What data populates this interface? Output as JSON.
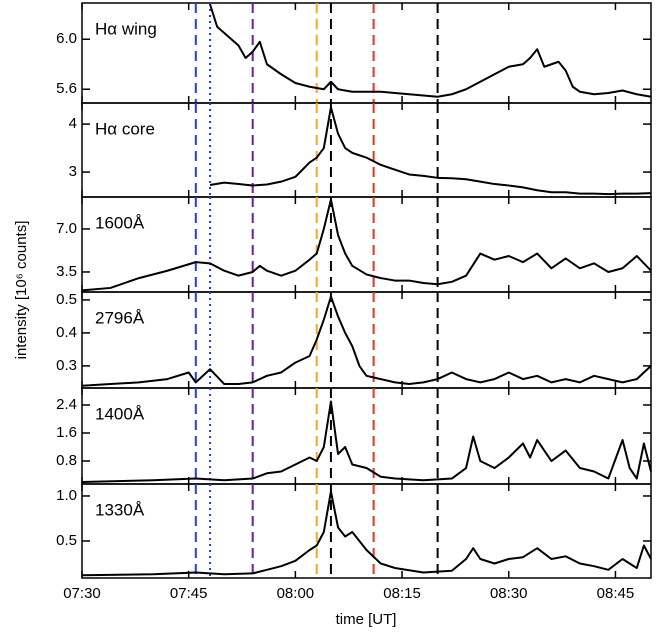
{
  "x_axis": {
    "label": "time [UT]",
    "lim": [
      "07:30",
      "08:50"
    ],
    "ticks": [
      "07:30",
      "07:45",
      "08:00",
      "08:15",
      "08:30",
      "08:45"
    ]
  },
  "ylabel": "intensity [10⁶ counts]",
  "vlines": [
    {
      "x": "07:46",
      "color": "#1f3fe0",
      "style": "dashed"
    },
    {
      "x": "07:48",
      "color": "#1f3fe0",
      "style": "dotted"
    },
    {
      "x": "07:54",
      "color": "#6a1fa0",
      "style": "dashed"
    },
    {
      "x": "08:03",
      "color": "#f5a623",
      "style": "dashed"
    },
    {
      "x": "08:05",
      "color": "#000000",
      "style": "dashed"
    },
    {
      "x": "08:11",
      "color": "#e8321e",
      "style": "dashed"
    },
    {
      "x": "08:20",
      "color": "#000000",
      "style": "dashed"
    }
  ],
  "chart_data": [
    {
      "type": "line",
      "title": "Hα wing",
      "color": "#000000",
      "ylim": [
        5.49,
        6.29
      ],
      "yticks": [
        5.6,
        {
          "value": 6,
          "label": "6.0"
        }
      ],
      "x": [
        "07:48",
        "07:49",
        "07:50",
        "07:52",
        "07:53",
        "07:54",
        "07:55",
        "07:56",
        "07:58",
        "08:00",
        "08:02",
        "08:04",
        "08:05",
        "08:06",
        "08:08",
        "08:10",
        "08:12",
        "08:14",
        "08:16",
        "08:18",
        "08:20",
        "08:22",
        "08:24",
        "08:26",
        "08:28",
        "08:30",
        "08:32",
        "08:33",
        "08:34",
        "08:35",
        "08:36",
        "08:37",
        "08:38",
        "08:39",
        "08:40",
        "08:42",
        "08:44",
        "08:46",
        "08:48",
        "08:50"
      ],
      "values": [
        6.28,
        6.1,
        6.05,
        5.95,
        5.85,
        5.9,
        5.98,
        5.8,
        5.72,
        5.65,
        5.62,
        5.6,
        5.66,
        5.6,
        5.58,
        5.58,
        5.58,
        5.57,
        5.56,
        5.55,
        5.54,
        5.56,
        5.6,
        5.66,
        5.72,
        5.78,
        5.8,
        5.85,
        5.92,
        5.78,
        5.8,
        5.82,
        5.75,
        5.62,
        5.58,
        5.56,
        5.57,
        5.59,
        5.56,
        5.54
      ]
    },
    {
      "type": "line",
      "title": "Hα core",
      "color": "#000000",
      "ylim": [
        2.48,
        4.44
      ],
      "yticks": [
        3,
        4
      ],
      "x": [
        "07:48",
        "07:50",
        "07:52",
        "07:54",
        "07:56",
        "07:58",
        "08:00",
        "08:02",
        "08:03",
        "08:04",
        "08:05",
        "08:06",
        "08:07",
        "08:08",
        "08:10",
        "08:12",
        "08:14",
        "08:16",
        "08:18",
        "08:20",
        "08:22",
        "08:24",
        "08:26",
        "08:28",
        "08:30",
        "08:32",
        "08:34",
        "08:36",
        "08:38",
        "08:40",
        "08:42",
        "08:44",
        "08:46",
        "08:48",
        "08:50"
      ],
      "values": [
        2.73,
        2.78,
        2.75,
        2.72,
        2.74,
        2.8,
        2.9,
        3.2,
        3.3,
        3.5,
        4.35,
        3.8,
        3.5,
        3.4,
        3.3,
        3.15,
        3.05,
        2.95,
        2.92,
        2.88,
        2.87,
        2.85,
        2.8,
        2.75,
        2.72,
        2.68,
        2.62,
        2.58,
        2.58,
        2.55,
        2.55,
        2.54,
        2.55,
        2.55,
        2.56
      ]
    },
    {
      "type": "line",
      "title": "1600Å",
      "color": "#000000",
      "ylim": [
        1.87,
        9.6
      ],
      "yticks": [
        3.5,
        {
          "value": 7,
          "label": "7.0"
        }
      ],
      "x": [
        "07:30",
        "07:34",
        "07:38",
        "07:42",
        "07:46",
        "07:48",
        "07:50",
        "07:52",
        "07:54",
        "07:55",
        "07:56",
        "07:58",
        "08:00",
        "08:02",
        "08:03",
        "08:04",
        "08:05",
        "08:06",
        "08:07",
        "08:08",
        "08:10",
        "08:12",
        "08:14",
        "08:16",
        "08:18",
        "08:20",
        "08:22",
        "08:24",
        "08:26",
        "08:28",
        "08:30",
        "08:32",
        "08:34",
        "08:36",
        "08:38",
        "08:40",
        "08:42",
        "08:44",
        "08:46",
        "08:48",
        "08:50"
      ],
      "values": [
        2.0,
        2.2,
        3.0,
        3.6,
        4.3,
        4.2,
        3.6,
        3.2,
        3.5,
        4.0,
        3.6,
        3.2,
        3.6,
        4.5,
        5.0,
        7.0,
        9.4,
        6.5,
        5.0,
        4.0,
        3.3,
        3.0,
        2.8,
        2.8,
        2.6,
        2.5,
        2.7,
        3.2,
        5.0,
        4.5,
        4.8,
        4.3,
        5.0,
        3.8,
        4.6,
        3.8,
        4.2,
        3.5,
        3.8,
        4.8,
        3.6
      ]
    },
    {
      "type": "line",
      "title": "2796Å",
      "color": "#000000",
      "ylim": [
        0.233,
        0.524
      ],
      "yticks": [
        0.3,
        0.4,
        0.5
      ],
      "x": [
        "07:30",
        "07:34",
        "07:38",
        "07:42",
        "07:45",
        "07:46",
        "07:48",
        "07:50",
        "07:52",
        "07:54",
        "07:56",
        "07:58",
        "08:00",
        "08:02",
        "08:03",
        "08:04",
        "08:05",
        "08:06",
        "08:07",
        "08:08",
        "08:09",
        "08:10",
        "08:12",
        "08:14",
        "08:16",
        "08:18",
        "08:20",
        "08:22",
        "08:24",
        "08:26",
        "08:28",
        "08:30",
        "08:32",
        "08:34",
        "08:36",
        "08:38",
        "08:40",
        "08:42",
        "08:44",
        "08:46",
        "08:48",
        "08:50"
      ],
      "values": [
        0.24,
        0.245,
        0.25,
        0.26,
        0.28,
        0.25,
        0.29,
        0.245,
        0.245,
        0.25,
        0.27,
        0.28,
        0.31,
        0.33,
        0.38,
        0.44,
        0.51,
        0.45,
        0.4,
        0.36,
        0.3,
        0.27,
        0.26,
        0.25,
        0.245,
        0.25,
        0.26,
        0.28,
        0.26,
        0.25,
        0.26,
        0.28,
        0.26,
        0.27,
        0.25,
        0.26,
        0.25,
        0.27,
        0.26,
        0.25,
        0.26,
        0.3
      ]
    },
    {
      "type": "line",
      "title": "1400Å",
      "color": "#000000",
      "ylim": [
        0.143,
        2.886
      ],
      "yticks": [
        0.8,
        1.6,
        2.4
      ],
      "x": [
        "07:30",
        "07:40",
        "07:46",
        "07:50",
        "07:54",
        "07:56",
        "07:58",
        "08:00",
        "08:02",
        "08:03",
        "08:04",
        "08:05",
        "08:06",
        "08:07",
        "08:08",
        "08:10",
        "08:12",
        "08:14",
        "08:18",
        "08:22",
        "08:24",
        "08:25",
        "08:26",
        "08:28",
        "08:30",
        "08:32",
        "08:33",
        "08:34",
        "08:36",
        "08:38",
        "08:40",
        "08:42",
        "08:44",
        "08:46",
        "08:47",
        "08:48",
        "08:49",
        "08:50"
      ],
      "values": [
        0.2,
        0.25,
        0.3,
        0.25,
        0.3,
        0.45,
        0.5,
        0.7,
        0.9,
        0.8,
        1.2,
        2.5,
        1.0,
        1.2,
        0.7,
        0.6,
        0.35,
        0.3,
        0.25,
        0.3,
        0.6,
        1.5,
        0.8,
        0.6,
        0.9,
        1.3,
        0.9,
        1.4,
        0.8,
        1.1,
        0.6,
        0.5,
        0.3,
        1.4,
        0.6,
        0.3,
        1.3,
        0.5
      ]
    },
    {
      "type": "line",
      "title": "1330Å",
      "color": "#000000",
      "ylim": [
        0.089,
        1.133
      ],
      "yticks": [
        0.5,
        {
          "value": 1,
          "label": "1.0"
        }
      ],
      "x": [
        "07:30",
        "07:40",
        "07:46",
        "07:50",
        "07:54",
        "07:56",
        "07:58",
        "08:00",
        "08:02",
        "08:03",
        "08:04",
        "08:05",
        "08:06",
        "08:07",
        "08:08",
        "08:09",
        "08:10",
        "08:12",
        "08:14",
        "08:18",
        "08:22",
        "08:24",
        "08:25",
        "08:26",
        "08:28",
        "08:30",
        "08:32",
        "08:34",
        "08:36",
        "08:38",
        "08:40",
        "08:42",
        "08:44",
        "08:46",
        "08:48",
        "08:49",
        "08:50"
      ],
      "values": [
        0.12,
        0.13,
        0.15,
        0.13,
        0.14,
        0.18,
        0.22,
        0.28,
        0.4,
        0.45,
        0.6,
        1.05,
        0.65,
        0.55,
        0.6,
        0.5,
        0.4,
        0.25,
        0.2,
        0.15,
        0.17,
        0.3,
        0.42,
        0.3,
        0.25,
        0.3,
        0.32,
        0.42,
        0.3,
        0.33,
        0.25,
        0.22,
        0.18,
        0.3,
        0.2,
        0.45,
        0.3
      ]
    }
  ]
}
